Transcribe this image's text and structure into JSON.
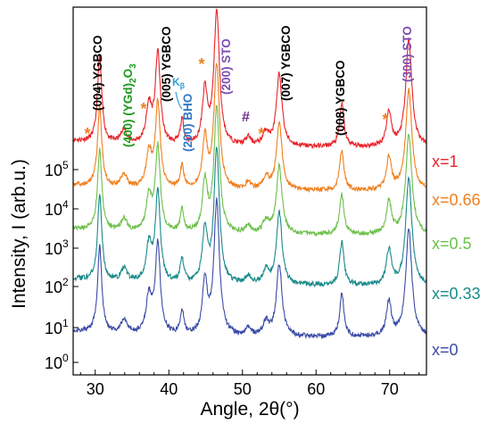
{
  "chart_data": {
    "type": "line",
    "xlabel": "Angle, 2θ(°)",
    "ylabel": "Intensity, I (arb.u.)",
    "xlim": [
      27,
      75
    ],
    "x_ticks": [
      30,
      40,
      50,
      60,
      70
    ],
    "y_scale": "log",
    "y_ticks": [
      {
        "base": "10",
        "exp": "0"
      },
      {
        "base": "10",
        "exp": "1"
      },
      {
        "base": "10",
        "exp": "2"
      },
      {
        "base": "10",
        "exp": "3"
      },
      {
        "base": "10",
        "exp": "4"
      },
      {
        "base": "10",
        "exp": "5"
      }
    ],
    "peaks": [
      {
        "x": 30.6,
        "h": 3.2,
        "w": 0.35
      },
      {
        "x": 33.9,
        "h": 0.5,
        "w": 0.5
      },
      {
        "x": 37.3,
        "h": 1.4,
        "w": 0.45
      },
      {
        "x": 38.5,
        "h": 3.4,
        "w": 0.4
      },
      {
        "x": 41.8,
        "h": 0.9,
        "w": 0.3
      },
      {
        "x": 44.9,
        "h": 2.0,
        "w": 0.4
      },
      {
        "x": 46.5,
        "h": 5.0,
        "w": 0.45
      },
      {
        "x": 50.8,
        "h": 0.3,
        "w": 0.4
      },
      {
        "x": 53.2,
        "h": 0.5,
        "w": 0.5
      },
      {
        "x": 55.0,
        "h": 2.7,
        "w": 0.45
      },
      {
        "x": 63.5,
        "h": 1.6,
        "w": 0.35
      },
      {
        "x": 69.9,
        "h": 1.3,
        "w": 0.4
      },
      {
        "x": 72.6,
        "h": 4.0,
        "w": 0.5
      }
    ],
    "series": [
      {
        "name": "x=1",
        "color": "#e8232a"
      },
      {
        "name": "x=0.66",
        "color": "#f07f1e"
      },
      {
        "name": "x=0.5",
        "color": "#6cc04a"
      },
      {
        "name": "x=0.33",
        "color": "#1a8a8a"
      },
      {
        "name": "x=0",
        "color": "#3b4ba6"
      }
    ],
    "annotations": [
      {
        "text": "(004) YGBCO",
        "color": "#000000",
        "kind": "vertical"
      },
      {
        "text": "(YGd)",
        "sub": "2",
        "text2": "O",
        "sub2": "3",
        "prefix": "(400) ",
        "color": "#1a9a1a",
        "kind": "vertical-formula"
      },
      {
        "text": "(005) YGBCO",
        "color": "#000000",
        "kind": "vertical"
      },
      {
        "text": "(200) BHO",
        "color": "#2f78c8",
        "kind": "vertical"
      },
      {
        "text": "(200) STO",
        "color": "#7b4fb0",
        "kind": "vertical"
      },
      {
        "text": "(007) YGBCO",
        "color": "#000000",
        "kind": "vertical"
      },
      {
        "text": "(008) YGBCO",
        "color": "#000000",
        "kind": "vertical"
      },
      {
        "text": "(300) STO",
        "color": "#7b4fb0",
        "kind": "vertical"
      },
      {
        "text": "#",
        "color": "#6a2c8a",
        "kind": "horizontal"
      },
      {
        "text": "K",
        "sub": "β",
        "color": "#2f9fd8",
        "kind": "kbeta"
      },
      {
        "text": "*",
        "color": "#f07f1e",
        "kind": "star"
      }
    ]
  }
}
